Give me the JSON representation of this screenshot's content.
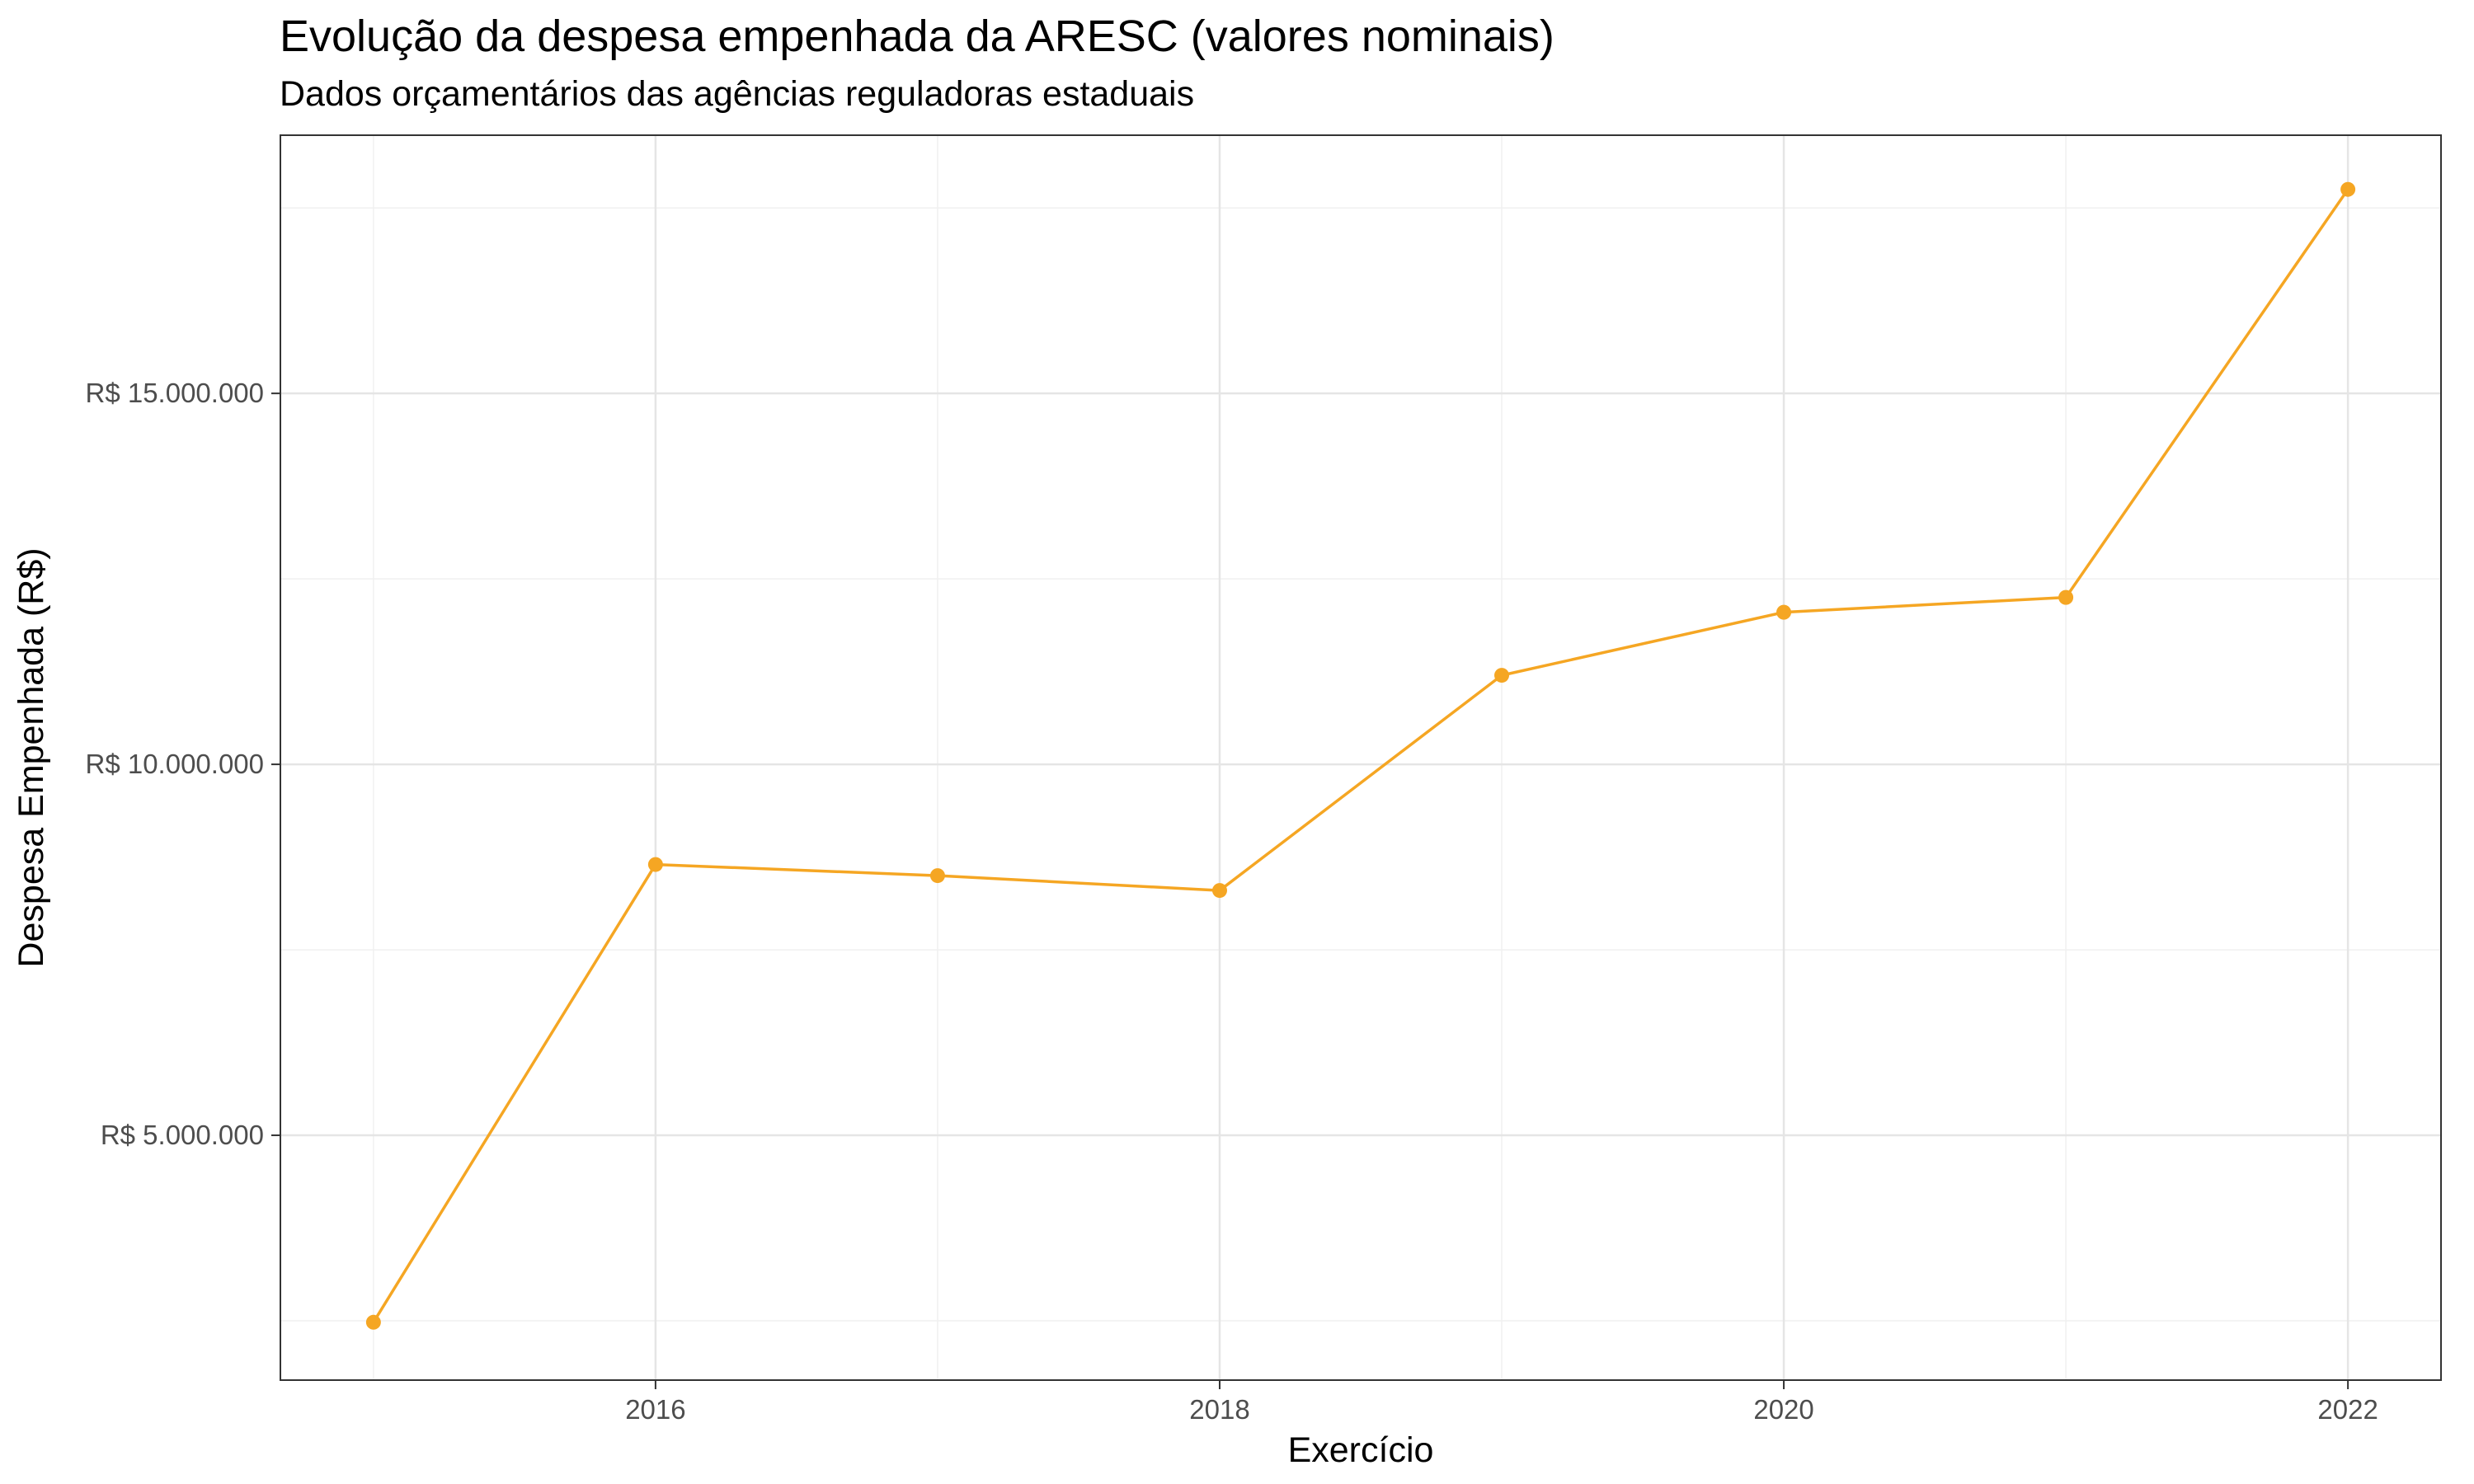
{
  "chart_data": {
    "type": "line",
    "title": "Evolução da despesa empenhada da ARESC (valores nominais)",
    "subtitle": "Dados orçamentários das agências reguladoras estaduais",
    "xlabel": "Exercício",
    "ylabel": "Despesa Empenhada (R$)",
    "x": [
      2015,
      2016,
      2017,
      2018,
      2019,
      2020,
      2021,
      2022
    ],
    "series": [
      {
        "values": [
          2480000,
          8650000,
          8500000,
          8300000,
          11200000,
          12050000,
          12250000,
          17750000
        ],
        "color": "#F5A623"
      }
    ],
    "xlim": [
      2014.67,
      2022.33
    ],
    "ylim": [
      1700000,
      18480000
    ],
    "x_ticks": [
      2016,
      2018,
      2020,
      2022
    ],
    "x_tick_labels": [
      "2016",
      "2018",
      "2020",
      "2022"
    ],
    "y_ticks": [
      5000000,
      10000000,
      15000000
    ],
    "y_tick_labels": [
      "R$ 5.000.000",
      "R$ 10.000.000",
      "R$ 15.000.000"
    ],
    "x_minor_ticks": [
      2015,
      2017,
      2019,
      2021
    ],
    "y_minor_ticks": [
      2500000,
      7500000,
      12500000,
      17500000
    ],
    "grid": true,
    "legend": "none"
  }
}
